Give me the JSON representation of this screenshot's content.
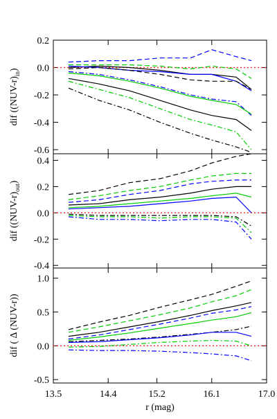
{
  "chart_data": {
    "type": "line",
    "shared_x": {
      "label": "r (mag)",
      "ticks": [
        13.5,
        14.4,
        15.2,
        16.1,
        17.0
      ],
      "tick_labels": [
        "13.5",
        "14.4",
        "15.2",
        "16.1",
        "17.0"
      ],
      "xlim": [
        13.5,
        17.0
      ]
    },
    "x": [
      13.75,
      14.0,
      14.25,
      14.5,
      14.75,
      15.0,
      15.25,
      15.5,
      15.75,
      16.0,
      16.25,
      16.5,
      16.75
    ],
    "panels": [
      {
        "ylabel": "dif ((NUV-r)",
        "ylabel_sub": "in",
        "ylabel_close": ")",
        "ylim": [
          -0.63,
          0.2
        ],
        "ticks": [
          0.2,
          0.0,
          -0.2,
          -0.4,
          -0.6
        ],
        "tick_labels": [
          "0.2",
          "0.0",
          "-0.2",
          "-0.4",
          "-0.6"
        ],
        "zero_line": 0.0,
        "series": [
          {
            "color": "#0000ff",
            "style": "dashed",
            "x": [
              13.75,
              14.25,
              14.75,
              15.25,
              15.75,
              16.1,
              16.5,
              16.75
            ],
            "values": [
              0.04,
              0.05,
              0.05,
              0.07,
              0.07,
              0.13,
              0.08,
              0.05
            ]
          },
          {
            "color": "#00cc00",
            "style": "dashed",
            "x": [
              13.75,
              14.25,
              14.75,
              15.25,
              15.75,
              16.1,
              16.5,
              16.75
            ],
            "values": [
              0.02,
              0.02,
              0.02,
              0.01,
              -0.01,
              0.01,
              -0.01,
              -0.08
            ]
          },
          {
            "color": "#000000",
            "style": "solid",
            "x": [
              13.75,
              14.25,
              14.75,
              15.25,
              15.75,
              16.1,
              16.5,
              16.75
            ],
            "values": [
              0.0,
              0.01,
              0.0,
              -0.02,
              -0.05,
              -0.05,
              -0.07,
              -0.16
            ]
          },
          {
            "color": "#0000ff",
            "style": "solid",
            "x": [
              13.75,
              14.25,
              14.75,
              15.25,
              15.75,
              16.1,
              16.5,
              16.75
            ],
            "values": [
              0.01,
              0.0,
              -0.02,
              -0.03,
              -0.05,
              -0.05,
              -0.1,
              -0.17
            ]
          },
          {
            "color": "#000000",
            "style": "dashed",
            "x": [
              13.75,
              14.25,
              14.75,
              15.25,
              15.75,
              16.1,
              16.5,
              16.75
            ],
            "values": [
              -0.01,
              0.0,
              -0.02,
              -0.05,
              -0.09,
              -0.1,
              -0.1,
              -0.16
            ]
          },
          {
            "color": "#0000ff",
            "style": "dashdot",
            "x": [
              13.75,
              14.25,
              14.75,
              15.25,
              15.75,
              16.1,
              16.5,
              16.75
            ],
            "values": [
              -0.03,
              -0.05,
              -0.09,
              -0.14,
              -0.2,
              -0.23,
              -0.25,
              -0.35
            ]
          },
          {
            "color": "#00cc00",
            "style": "solid",
            "x": [
              13.75,
              14.25,
              14.75,
              15.25,
              15.75,
              16.1,
              16.5,
              16.75
            ],
            "values": [
              -0.04,
              -0.06,
              -0.1,
              -0.15,
              -0.21,
              -0.24,
              -0.27,
              -0.34
            ]
          },
          {
            "color": "#000000",
            "style": "solid",
            "x": [
              13.75,
              14.25,
              14.75,
              15.25,
              15.75,
              16.1,
              16.5,
              16.75
            ],
            "values": [
              -0.08,
              -0.12,
              -0.17,
              -0.24,
              -0.31,
              -0.35,
              -0.38,
              -0.46
            ]
          },
          {
            "color": "#00cc00",
            "style": "dashdot",
            "x": [
              13.75,
              14.25,
              14.75,
              15.25,
              15.75,
              16.1,
              16.5,
              16.75
            ],
            "values": [
              -0.1,
              -0.16,
              -0.22,
              -0.3,
              -0.38,
              -0.42,
              -0.47,
              -0.6
            ]
          },
          {
            "color": "#000000",
            "style": "dashdot",
            "x": [
              13.75,
              14.25,
              14.75,
              15.25,
              15.75,
              16.1,
              16.5,
              16.75
            ],
            "values": [
              -0.15,
              -0.24,
              -0.31,
              -0.4,
              -0.48,
              -0.53,
              -0.58,
              -0.62
            ]
          }
        ]
      },
      {
        "ylabel": "dif  ((NUV-r)",
        "ylabel_sub": "out",
        "ylabel_close": ")",
        "ylim": [
          -0.42,
          0.45
        ],
        "ticks": [
          0.4,
          0.2,
          0.0,
          -0.2,
          -0.4
        ],
        "tick_labels": [
          "0.4",
          "0.2",
          "0.0",
          "-0.2",
          "-0.4"
        ],
        "zero_line": 0.0,
        "series": [
          {
            "color": "#000000",
            "style": "dashed",
            "x": [
              13.75,
              14.25,
              14.75,
              15.25,
              15.75,
              16.1,
              16.5,
              16.75
            ],
            "values": [
              0.14,
              0.17,
              0.23,
              0.26,
              0.32,
              0.38,
              0.43,
              0.45
            ]
          },
          {
            "color": "#00cc00",
            "style": "dashed",
            "x": [
              13.75,
              14.25,
              14.75,
              15.25,
              15.75,
              16.1,
              16.5,
              16.75
            ],
            "values": [
              0.1,
              0.13,
              0.17,
              0.2,
              0.25,
              0.28,
              0.3,
              0.3
            ]
          },
          {
            "color": "#0000ff",
            "style": "dashed",
            "x": [
              13.75,
              14.25,
              14.75,
              15.25,
              15.75,
              16.1,
              16.5,
              16.75
            ],
            "values": [
              0.08,
              0.1,
              0.14,
              0.17,
              0.22,
              0.24,
              0.25,
              0.25
            ]
          },
          {
            "color": "#000000",
            "style": "solid",
            "x": [
              13.75,
              14.25,
              14.75,
              15.25,
              15.75,
              16.1,
              16.5,
              16.75
            ],
            "values": [
              0.06,
              0.07,
              0.1,
              0.12,
              0.15,
              0.18,
              0.2,
              0.2
            ]
          },
          {
            "color": "#00cc00",
            "style": "solid",
            "x": [
              13.75,
              14.25,
              14.75,
              15.25,
              15.75,
              16.1,
              16.5,
              16.75
            ],
            "values": [
              0.04,
              0.05,
              0.07,
              0.09,
              0.11,
              0.13,
              0.15,
              0.12
            ]
          },
          {
            "color": "#0000ff",
            "style": "solid",
            "x": [
              13.75,
              14.25,
              14.75,
              15.25,
              15.75,
              16.1,
              16.5,
              16.75
            ],
            "values": [
              0.03,
              0.04,
              0.05,
              0.07,
              0.09,
              0.11,
              0.12,
              0.0
            ]
          },
          {
            "color": "#000000",
            "style": "dashdot",
            "x": [
              13.75,
              14.25,
              14.75,
              15.25,
              15.75,
              16.1,
              16.5,
              16.75
            ],
            "values": [
              -0.01,
              -0.02,
              -0.02,
              -0.02,
              -0.02,
              -0.02,
              -0.03,
              -0.1
            ]
          },
          {
            "color": "#00cc00",
            "style": "dashdot",
            "x": [
              13.75,
              14.25,
              14.75,
              15.25,
              15.75,
              16.1,
              16.5,
              16.75
            ],
            "values": [
              -0.02,
              -0.03,
              -0.03,
              -0.04,
              -0.03,
              -0.03,
              -0.04,
              -0.15
            ]
          },
          {
            "color": "#0000ff",
            "style": "dashdot",
            "x": [
              13.75,
              14.25,
              14.75,
              15.25,
              15.75,
              16.1,
              16.5,
              16.75
            ],
            "values": [
              -0.03,
              -0.05,
              -0.05,
              -0.06,
              -0.05,
              -0.05,
              -0.07,
              -0.2
            ]
          }
        ]
      },
      {
        "ylabel": "dif ( Δ (NUV-r))",
        "ylabel_sub": "",
        "ylabel_close": "",
        "ylim": [
          -0.55,
          1.15
        ],
        "ticks": [
          1.0,
          0.5,
          0.0,
          -0.5
        ],
        "tick_labels": [
          "1.0",
          "0.5",
          "0.0",
          "-0.5"
        ],
        "zero_line": 0.0,
        "series": [
          {
            "color": "#000000",
            "style": "dashed",
            "x": [
              13.75,
              14.25,
              14.75,
              15.25,
              15.75,
              16.1,
              16.5,
              16.75
            ],
            "values": [
              0.24,
              0.35,
              0.45,
              0.57,
              0.68,
              0.76,
              0.88,
              0.96
            ]
          },
          {
            "color": "#00cc00",
            "style": "dashed",
            "x": [
              13.75,
              14.25,
              14.75,
              15.25,
              15.75,
              16.1,
              16.5,
              16.75
            ],
            "values": [
              0.2,
              0.28,
              0.37,
              0.46,
              0.56,
              0.65,
              0.74,
              0.83
            ]
          },
          {
            "color": "#000000",
            "style": "solid",
            "x": [
              13.75,
              14.25,
              14.75,
              15.25,
              15.75,
              16.1,
              16.5,
              16.75
            ],
            "values": [
              0.14,
              0.2,
              0.28,
              0.36,
              0.45,
              0.52,
              0.59,
              0.64
            ]
          },
          {
            "color": "#0000ff",
            "style": "dashed",
            "x": [
              13.75,
              14.25,
              14.75,
              15.25,
              15.75,
              16.1,
              16.5,
              16.75
            ],
            "values": [
              0.1,
              0.16,
              0.24,
              0.32,
              0.41,
              0.48,
              0.53,
              0.58
            ]
          },
          {
            "color": "#00cc00",
            "style": "solid",
            "x": [
              13.75,
              14.25,
              14.75,
              15.25,
              15.75,
              16.1,
              16.5,
              16.75
            ],
            "values": [
              0.08,
              0.13,
              0.19,
              0.26,
              0.33,
              0.38,
              0.43,
              0.49
            ]
          },
          {
            "color": "#000000",
            "style": "dashdot",
            "x": [
              13.75,
              14.25,
              14.75,
              15.25,
              15.75,
              16.1,
              16.5,
              16.75
            ],
            "values": [
              0.06,
              0.08,
              0.1,
              0.13,
              0.17,
              0.2,
              0.24,
              0.29
            ]
          },
          {
            "color": "#0000ff",
            "style": "solid",
            "x": [
              13.75,
              14.25,
              14.75,
              15.25,
              15.75,
              16.1,
              16.5,
              16.75
            ],
            "values": [
              0.05,
              0.06,
              0.09,
              0.12,
              0.16,
              0.2,
              0.2,
              0.14
            ]
          },
          {
            "color": "#00cc00",
            "style": "dashdot",
            "x": [
              13.75,
              14.25,
              14.75,
              15.25,
              15.75,
              16.1,
              16.5,
              16.75
            ],
            "values": [
              -0.02,
              -0.01,
              0.02,
              0.05,
              0.07,
              0.08,
              0.07,
              0.0
            ]
          },
          {
            "color": "#0000ff",
            "style": "dashdot",
            "x": [
              13.75,
              14.25,
              14.75,
              15.25,
              15.75,
              16.1,
              16.5,
              16.75
            ],
            "values": [
              -0.06,
              -0.07,
              -0.07,
              -0.08,
              -0.1,
              -0.12,
              -0.15,
              -0.22
            ]
          }
        ]
      }
    ]
  }
}
